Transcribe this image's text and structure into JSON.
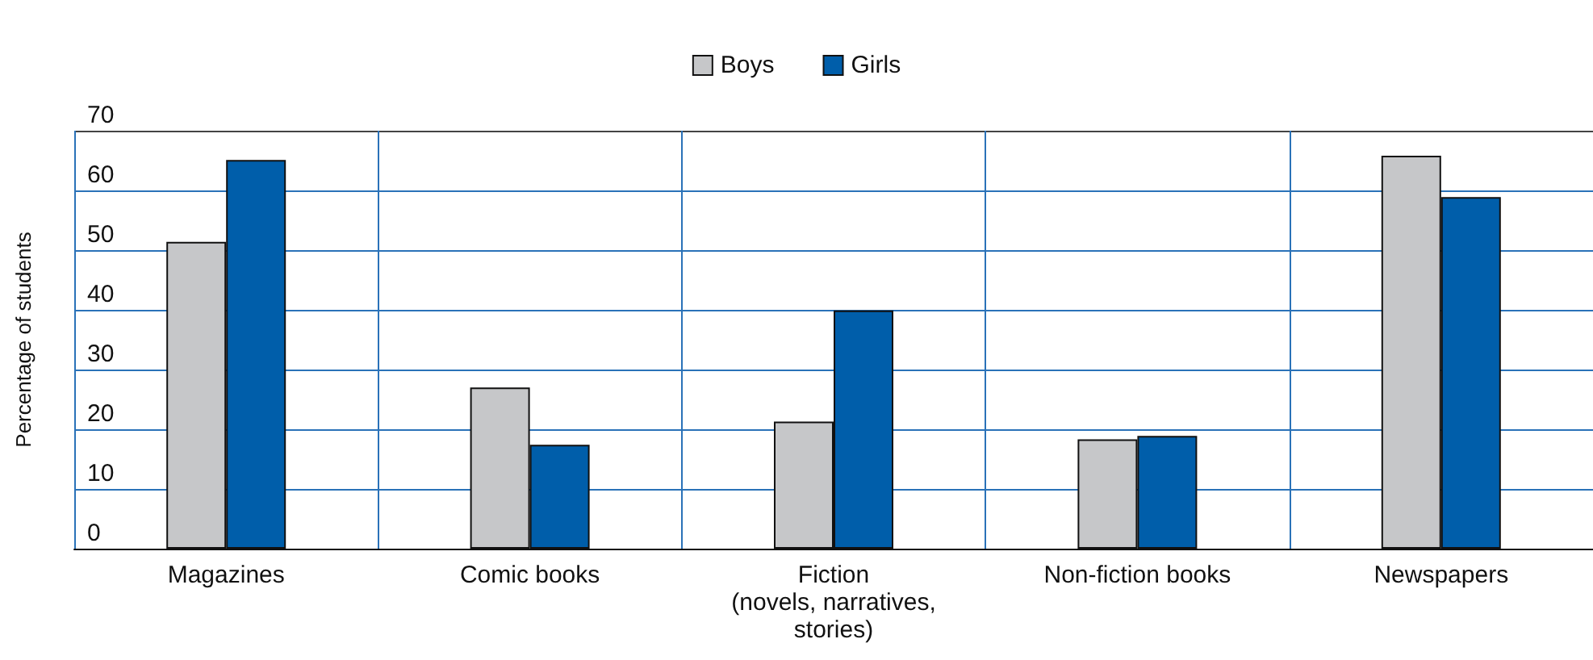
{
  "chart_data": {
    "type": "bar",
    "ylabel": "Percentage of students",
    "categories": [
      "Magazines",
      "Comic books",
      "Fiction\n(novels, narratives,\nstories)",
      "Non-fiction books",
      "Newspapers"
    ],
    "series": [
      {
        "name": "Boys",
        "color": "#c6c7c9",
        "values": [
          51.4,
          27,
          21.3,
          18.3,
          65.8
        ]
      },
      {
        "name": "Girls",
        "color": "#005eaa",
        "values": [
          65.1,
          17.4,
          39.9,
          18.9,
          58.9
        ]
      }
    ],
    "ylim": [
      0,
      70
    ],
    "yticks": [
      0,
      10,
      20,
      30,
      40,
      50,
      60,
      70
    ],
    "grid": true,
    "legend": "top"
  }
}
